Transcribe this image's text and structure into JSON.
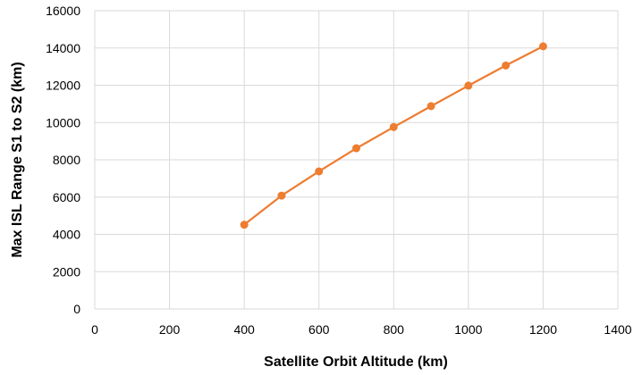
{
  "chart_data": {
    "type": "line",
    "title": "",
    "xlabel": "Satellite Orbit Altitude (km)",
    "ylabel": "Max ISL Range S1 to S2 (km)",
    "xlim": [
      0,
      1400
    ],
    "ylim": [
      0,
      16000
    ],
    "x_ticks": [
      0,
      200,
      400,
      600,
      800,
      1000,
      1200,
      1400
    ],
    "y_ticks": [
      0,
      2000,
      4000,
      6000,
      8000,
      10000,
      12000,
      14000,
      16000
    ],
    "grid": true,
    "legend": "none",
    "series": [
      {
        "color": "#ED7D31",
        "marker": "circle",
        "x": [
          400,
          500,
          600,
          700,
          800,
          900,
          1000,
          1100,
          1200
        ],
        "y": [
          4520,
          6080,
          7380,
          8620,
          9760,
          10880,
          11980,
          13060,
          14090
        ]
      }
    ]
  }
}
